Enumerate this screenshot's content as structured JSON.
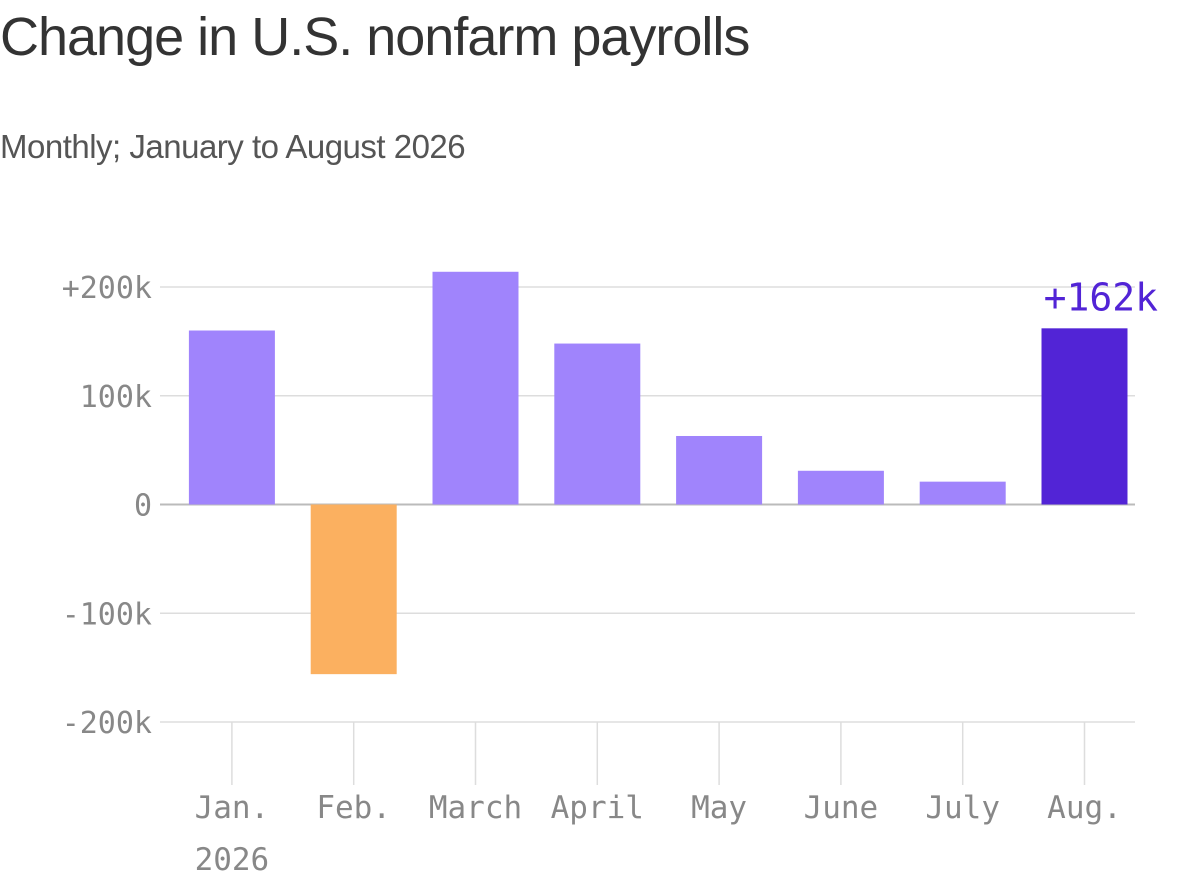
{
  "title": "Change in U.S. nonfarm payrolls",
  "subtitle": "Monthly; January to August 2026",
  "colors": {
    "positive": "#a084fc",
    "negative": "#fbb060",
    "highlight": "#5224d6",
    "grid": "#dddddd",
    "zero_line": "#bbbbbb",
    "tick_text": "#888888"
  },
  "chart_data": {
    "type": "bar",
    "categories": [
      "Jan. 2026",
      "Feb.",
      "March",
      "April",
      "May",
      "June",
      "July",
      "Aug."
    ],
    "values": [
      160,
      -156,
      214,
      148,
      63,
      31,
      21,
      162
    ],
    "unit": "thousands",
    "ylim": [
      -200,
      200
    ],
    "yticks": [
      200,
      100,
      0,
      -100,
      -200
    ],
    "ytick_labels": [
      "+200k",
      "100k",
      "0",
      "-100k",
      "-200k"
    ],
    "highlight_index": 7,
    "annotation": "+162k",
    "grid": true
  }
}
